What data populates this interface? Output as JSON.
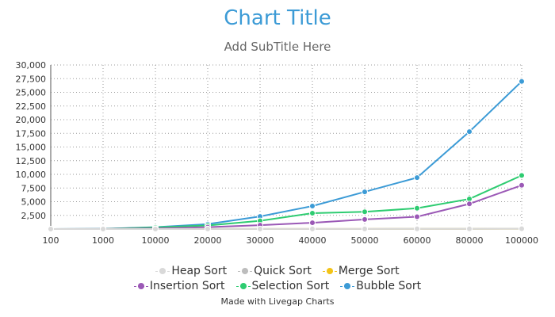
{
  "chart_data": {
    "type": "line",
    "title": "Chart Title",
    "subtitle": "Add SubTitle Here",
    "categories": [
      "100",
      "1000",
      "10000",
      "20000",
      "30000",
      "40000",
      "50000",
      "60000",
      "80000",
      "100000"
    ],
    "ylim": [
      0,
      30000
    ],
    "yticks": [
      "30,000",
      "27,500",
      "25,000",
      "22,500",
      "20,000",
      "17,500",
      "15,000",
      "12,500",
      "10,000",
      "7,500",
      "5,000",
      "2,500"
    ],
    "grid": true,
    "legend_position": "bottom",
    "series": [
      {
        "name": "Heap Sort",
        "color": "#d9d9d9",
        "values": [
          0,
          0,
          5,
          10,
          15,
          20,
          25,
          30,
          40,
          50
        ]
      },
      {
        "name": "Quick Sort",
        "color": "#bdbdbd",
        "values": [
          0,
          0,
          5,
          10,
          15,
          20,
          25,
          30,
          40,
          50
        ]
      },
      {
        "name": "Merge Sort",
        "color": "#f2c318",
        "values": [
          0,
          0,
          5,
          10,
          15,
          20,
          25,
          30,
          40,
          50
        ]
      },
      {
        "name": "Insertion Sort",
        "color": "#9b59b6",
        "values": [
          0,
          10,
          100,
          350,
          700,
          1150,
          1750,
          2250,
          4600,
          8000
        ]
      },
      {
        "name": "Selection Sort",
        "color": "#2ecc71",
        "values": [
          0,
          20,
          300,
          650,
          1500,
          2900,
          3150,
          3800,
          5500,
          9800
        ]
      },
      {
        "name": "Bubble Sort",
        "color": "#3c9bd6",
        "values": [
          0,
          30,
          350,
          900,
          2300,
          4200,
          6800,
          9400,
          17800,
          27000
        ]
      }
    ],
    "draw_order": [
      5,
      4,
      3,
      2,
      1,
      0
    ]
  },
  "footer": "Made with Livegap Charts"
}
